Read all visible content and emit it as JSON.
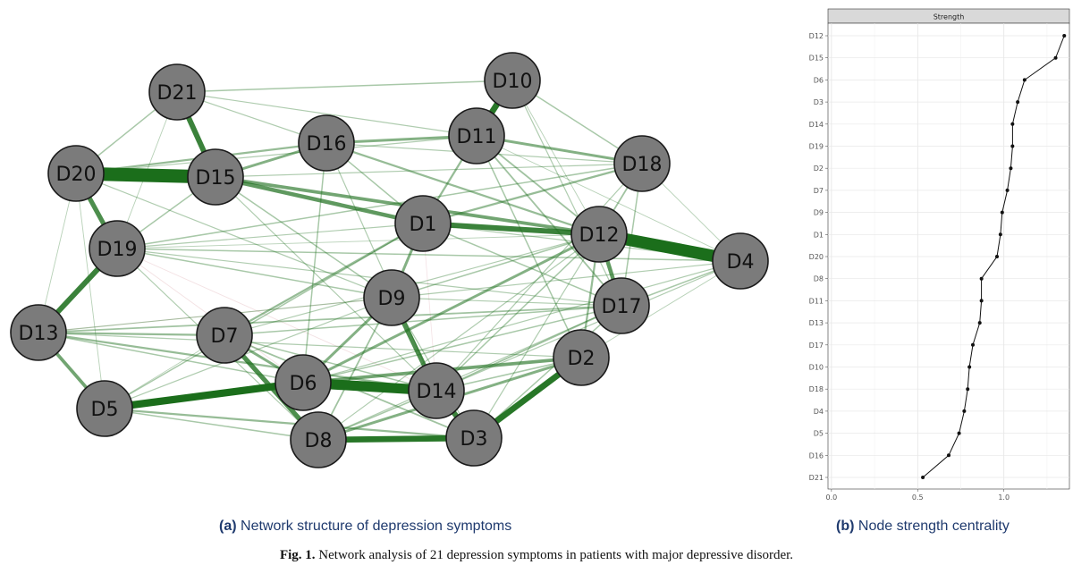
{
  "chart_data": [
    {
      "type": "network",
      "nodes": [
        "D1",
        "D2",
        "D3",
        "D4",
        "D5",
        "D6",
        "D7",
        "D8",
        "D9",
        "D10",
        "D11",
        "D12",
        "D13",
        "D14",
        "D15",
        "D16",
        "D17",
        "D18",
        "D19",
        "D20",
        "D21"
      ],
      "edges": [
        {
          "a": "D20",
          "b": "D15",
          "w": 1.0
        },
        {
          "a": "D12",
          "b": "D4",
          "w": 0.9
        },
        {
          "a": "D6",
          "b": "D14",
          "w": 0.75
        },
        {
          "a": "D5",
          "b": "D6",
          "w": 0.55
        },
        {
          "a": "D10",
          "b": "D11",
          "w": 0.45
        },
        {
          "a": "D21",
          "b": "D15",
          "w": 0.4
        },
        {
          "a": "D8",
          "b": "D3",
          "w": 0.45
        },
        {
          "a": "D3",
          "b": "D2",
          "w": 0.45
        },
        {
          "a": "D13",
          "b": "D19",
          "w": 0.4
        },
        {
          "a": "D20",
          "b": "D19",
          "w": 0.35
        },
        {
          "a": "D1",
          "b": "D12",
          "w": 0.4
        },
        {
          "a": "D14",
          "b": "D3",
          "w": 0.4
        },
        {
          "a": "D9",
          "b": "D14",
          "w": 0.35
        },
        {
          "a": "D7",
          "b": "D8",
          "w": 0.35
        },
        {
          "a": "D12",
          "b": "D17",
          "w": 0.3
        },
        {
          "a": "D15",
          "b": "D1",
          "w": 0.3
        },
        {
          "a": "D15",
          "b": "D12",
          "w": 0.25
        },
        {
          "a": "D13",
          "b": "D5",
          "w": 0.25
        },
        {
          "a": "D6",
          "b": "D2",
          "w": 0.25
        },
        {
          "a": "D8",
          "b": "D2",
          "w": 0.2
        },
        {
          "a": "D1",
          "b": "D9",
          "w": 0.2
        },
        {
          "a": "D11",
          "b": "D18",
          "w": 0.2
        },
        {
          "a": "D16",
          "b": "D11",
          "w": 0.2
        },
        {
          "a": "D7",
          "b": "D6",
          "w": 0.2
        },
        {
          "a": "D15",
          "b": "D16",
          "w": 0.2
        },
        {
          "a": "D20",
          "b": "D16",
          "w": 0.15
        },
        {
          "a": "D6",
          "b": "D12",
          "w": 0.2
        },
        {
          "a": "D7",
          "b": "D1",
          "w": 0.15
        },
        {
          "a": "D9",
          "b": "D6",
          "w": 0.2
        },
        {
          "a": "D13",
          "b": "D7",
          "w": 0.15
        },
        {
          "a": "D13",
          "b": "D14",
          "w": 0.15
        },
        {
          "a": "D5",
          "b": "D3",
          "w": 0.15
        },
        {
          "a": "D11",
          "b": "D1",
          "w": 0.15
        },
        {
          "a": "D16",
          "b": "D12",
          "w": 0.15
        },
        {
          "a": "D1",
          "b": "D18",
          "w": 0.15
        },
        {
          "a": "D21",
          "b": "D10",
          "w": 0.1
        },
        {
          "a": "D12",
          "b": "D2",
          "w": 0.15
        },
        {
          "a": "D17",
          "b": "D14",
          "w": 0.12
        },
        {
          "a": "D18",
          "b": "D12",
          "w": 0.12
        },
        {
          "a": "D19",
          "b": "D18",
          "w": 0.1
        },
        {
          "a": "D19",
          "b": "D4",
          "w": 0.1
        },
        {
          "a": "D13",
          "b": "D17",
          "w": 0.12
        },
        {
          "a": "D15",
          "b": "D9",
          "w": 0.1
        },
        {
          "a": "D8",
          "b": "D9",
          "w": 0.12
        },
        {
          "a": "D5",
          "b": "D1",
          "w": 0.1
        },
        {
          "a": "D11",
          "b": "D17",
          "w": 0.12
        },
        {
          "a": "D7",
          "b": "D3",
          "w": 0.12
        },
        {
          "a": "D20",
          "b": "D9",
          "w": 0.08
        },
        {
          "a": "D21",
          "b": "D16",
          "w": 0.08
        },
        {
          "a": "D21",
          "b": "D20",
          "w": 0.1
        },
        {
          "a": "D21",
          "b": "D11",
          "w": 0.08
        },
        {
          "a": "D10",
          "b": "D18",
          "w": 0.1
        },
        {
          "a": "D10",
          "b": "D17",
          "w": 0.08
        },
        {
          "a": "D11",
          "b": "D2",
          "w": 0.1
        },
        {
          "a": "D16",
          "b": "D6",
          "w": 0.1
        },
        {
          "a": "D19",
          "b": "D9",
          "w": 0.1
        },
        {
          "a": "D19",
          "b": "D17",
          "w": 0.08
        },
        {
          "a": "D19",
          "b": "D8",
          "w": 0.08
        },
        {
          "a": "D13",
          "b": "D9",
          "w": 0.08
        },
        {
          "a": "D13",
          "b": "D6",
          "w": 0.1
        },
        {
          "a": "D13",
          "b": "D2",
          "w": 0.08
        },
        {
          "a": "D5",
          "b": "D8",
          "w": 0.1
        },
        {
          "a": "D5",
          "b": "D9",
          "w": 0.08
        },
        {
          "a": "D7",
          "b": "D17",
          "w": 0.1
        },
        {
          "a": "D7",
          "b": "D14",
          "w": 0.1
        },
        {
          "a": "D7",
          "b": "D12",
          "w": 0.08
        },
        {
          "a": "D6",
          "b": "D17",
          "w": 0.1
        },
        {
          "a": "D6",
          "b": "D4",
          "w": 0.08
        },
        {
          "a": "D14",
          "b": "D12",
          "w": 0.1
        },
        {
          "a": "D14",
          "b": "D18",
          "w": 0.08
        },
        {
          "a": "D14",
          "b": "D2",
          "w": 0.1
        },
        {
          "a": "D14",
          "b": "D4",
          "w": 0.08
        },
        {
          "a": "D3",
          "b": "D17",
          "w": 0.1
        },
        {
          "a": "D3",
          "b": "D9",
          "w": 0.08
        },
        {
          "a": "D8",
          "b": "D14",
          "w": 0.1
        },
        {
          "a": "D8",
          "b": "D17",
          "w": 0.08
        },
        {
          "a": "D8",
          "b": "D12",
          "w": 0.08
        },
        {
          "a": "D9",
          "b": "D12",
          "w": 0.1
        },
        {
          "a": "D9",
          "b": "D4",
          "w": 0.08
        },
        {
          "a": "D9",
          "b": "D17",
          "w": 0.08
        },
        {
          "a": "D1",
          "b": "D17",
          "w": 0.1
        },
        {
          "a": "D1",
          "b": "D4",
          "w": 0.08
        },
        {
          "a": "D16",
          "b": "D1",
          "w": 0.1
        },
        {
          "a": "D16",
          "b": "D18",
          "w": 0.08
        },
        {
          "a": "D16",
          "b": "D14",
          "w": 0.08
        },
        {
          "a": "D15",
          "b": "D14",
          "w": 0.08
        },
        {
          "a": "D15",
          "b": "D18",
          "w": 0.08
        },
        {
          "a": "D15",
          "b": "D19",
          "w": 0.1
        },
        {
          "a": "D20",
          "b": "D13",
          "w": 0.06
        },
        {
          "a": "D20",
          "b": "D5",
          "w": 0.06
        },
        {
          "a": "D20",
          "b": "D11",
          "w": 0.08
        },
        {
          "a": "D21",
          "b": "D19",
          "w": 0.06
        },
        {
          "a": "D12",
          "b": "D3",
          "w": 0.08
        },
        {
          "a": "D18",
          "b": "D17",
          "w": 0.1
        },
        {
          "a": "D18",
          "b": "D4",
          "w": 0.06
        },
        {
          "a": "D17",
          "b": "D4",
          "w": 0.1
        },
        {
          "a": "D2",
          "b": "D4",
          "w": 0.06
        },
        {
          "a": "D11",
          "b": "D12",
          "w": 0.12
        },
        {
          "a": "D11",
          "b": "D4",
          "w": 0.06
        },
        {
          "a": "D10",
          "b": "D12",
          "w": 0.06
        },
        {
          "a": "D19",
          "b": "D1",
          "w": 0.08
        },
        {
          "a": "D19",
          "b": "D12",
          "w": 0.06
        },
        {
          "a": "D5",
          "b": "D7",
          "w": 0.06
        },
        {
          "a": "D19",
          "b": "D14",
          "w": 0.06,
          "neg": true
        },
        {
          "a": "D19",
          "b": "D6",
          "w": 0.06,
          "neg": true
        },
        {
          "a": "D13",
          "b": "D9",
          "w": 0.05,
          "neg": true
        },
        {
          "a": "D1",
          "b": "D14",
          "w": 0.05,
          "neg": true
        }
      ]
    },
    {
      "type": "dot-line",
      "panel_title": "Strength",
      "categories": [
        "D12",
        "D15",
        "D6",
        "D3",
        "D14",
        "D19",
        "D2",
        "D7",
        "D9",
        "D1",
        "D20",
        "D8",
        "D11",
        "D13",
        "D17",
        "D10",
        "D18",
        "D4",
        "D5",
        "D16",
        "D21"
      ],
      "values": [
        1.35,
        1.3,
        1.12,
        1.08,
        1.05,
        1.05,
        1.04,
        1.02,
        0.99,
        0.98,
        0.96,
        0.87,
        0.87,
        0.86,
        0.82,
        0.8,
        0.79,
        0.77,
        0.74,
        0.68,
        0.53
      ],
      "xlim": [
        -0.02,
        1.38
      ],
      "xticks": [
        "0.0",
        "0.5",
        "1.0"
      ],
      "xtick_values": [
        0,
        0.5,
        1.0
      ],
      "grid": true
    }
  ],
  "captions": {
    "panel_a_label": "(a)",
    "panel_a_text": "Network structure of depression symptoms",
    "panel_b_label": "(b)",
    "panel_b_text": "Node strength centrality",
    "figure_label": "Fig. 1.",
    "figure_text": "Network analysis of 21 depression symptoms in patients with major depressive disorder."
  },
  "colors": {
    "positive_edge": "#1b6e1b",
    "negative_edge": "#d9a0a8",
    "node_fill": "#7b7b7b",
    "node_stroke": "#1a1a1a",
    "caption_text": "#1f3a6e"
  }
}
